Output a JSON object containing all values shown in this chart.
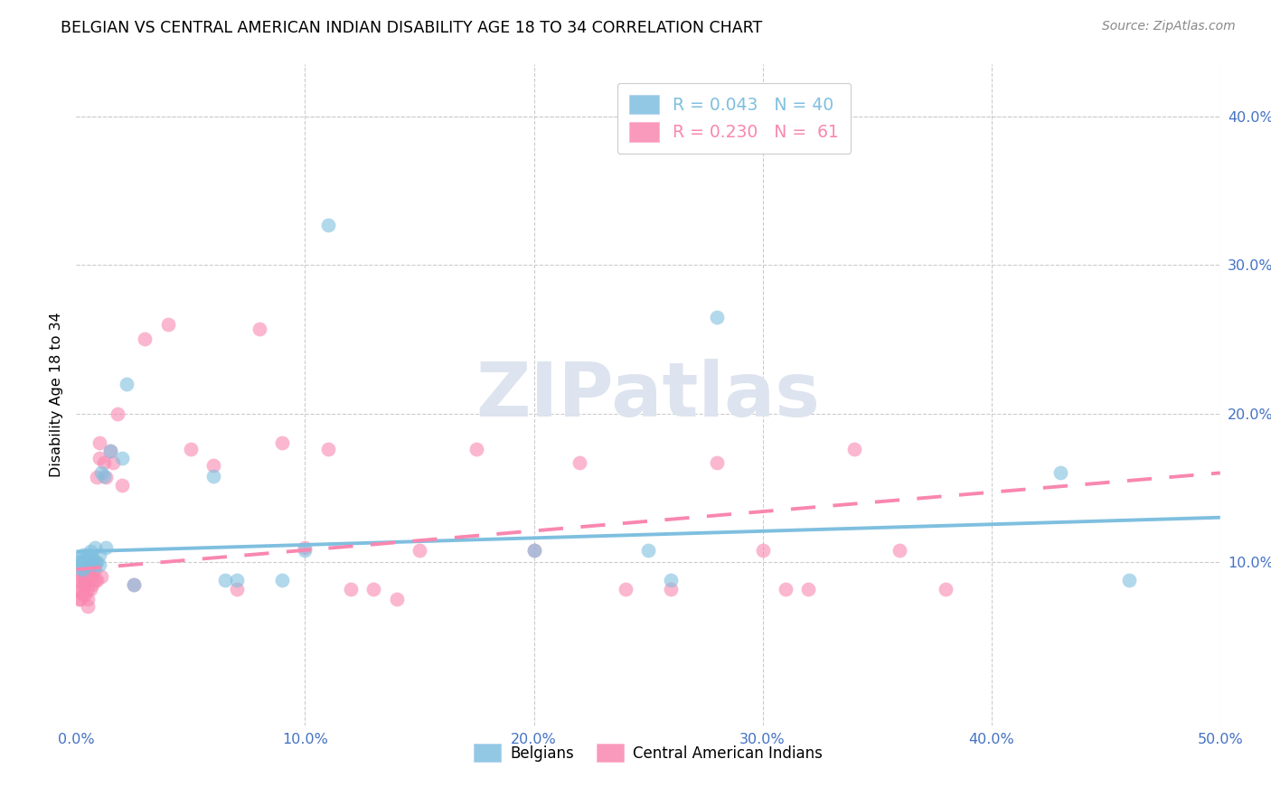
{
  "title": "BELGIAN VS CENTRAL AMERICAN INDIAN DISABILITY AGE 18 TO 34 CORRELATION CHART",
  "source": "Source: ZipAtlas.com",
  "ylabel": "Disability Age 18 to 34",
  "xlim": [
    0.0,
    0.5
  ],
  "ylim": [
    -0.01,
    0.435
  ],
  "xticks": [
    0.0,
    0.1,
    0.2,
    0.3,
    0.4,
    0.5
  ],
  "yticks": [
    0.1,
    0.2,
    0.3,
    0.4
  ],
  "xtick_labels": [
    "0.0%",
    "10.0%",
    "20.0%",
    "30.0%",
    "40.0%",
    "50.0%"
  ],
  "ytick_labels": [
    "10.0%",
    "20.0%",
    "30.0%",
    "40.0%"
  ],
  "belgian_R": 0.043,
  "belgian_N": 40,
  "central_R": 0.23,
  "central_N": 61,
  "belgian_color": "#7fbfdf",
  "central_color": "#f987b0",
  "background_color": "#ffffff",
  "grid_color": "#cccccc",
  "watermark_color": "#dde4ef",
  "belgian_x": [
    0.001,
    0.001,
    0.002,
    0.002,
    0.003,
    0.003,
    0.003,
    0.004,
    0.004,
    0.005,
    0.005,
    0.005,
    0.006,
    0.006,
    0.007,
    0.007,
    0.008,
    0.008,
    0.009,
    0.01,
    0.01,
    0.011,
    0.012,
    0.013,
    0.015,
    0.02,
    0.022,
    0.025,
    0.06,
    0.065,
    0.07,
    0.09,
    0.1,
    0.11,
    0.2,
    0.25,
    0.26,
    0.28,
    0.43,
    0.46
  ],
  "belgian_y": [
    0.1,
    0.098,
    0.096,
    0.103,
    0.095,
    0.1,
    0.105,
    0.098,
    0.102,
    0.1,
    0.105,
    0.098,
    0.1,
    0.107,
    0.1,
    0.103,
    0.11,
    0.098,
    0.1,
    0.098,
    0.105,
    0.16,
    0.158,
    0.11,
    0.175,
    0.17,
    0.22,
    0.085,
    0.158,
    0.088,
    0.088,
    0.088,
    0.108,
    0.327,
    0.108,
    0.108,
    0.088,
    0.265,
    0.16,
    0.088
  ],
  "central_x": [
    0.001,
    0.001,
    0.001,
    0.002,
    0.002,
    0.002,
    0.003,
    0.003,
    0.003,
    0.004,
    0.004,
    0.004,
    0.005,
    0.005,
    0.005,
    0.006,
    0.006,
    0.006,
    0.007,
    0.007,
    0.007,
    0.008,
    0.008,
    0.008,
    0.009,
    0.009,
    0.01,
    0.01,
    0.011,
    0.012,
    0.013,
    0.015,
    0.016,
    0.018,
    0.02,
    0.025,
    0.03,
    0.04,
    0.05,
    0.06,
    0.07,
    0.08,
    0.09,
    0.1,
    0.11,
    0.12,
    0.13,
    0.14,
    0.15,
    0.175,
    0.2,
    0.22,
    0.24,
    0.26,
    0.28,
    0.3,
    0.31,
    0.32,
    0.34,
    0.36,
    0.38
  ],
  "central_y": [
    0.088,
    0.082,
    0.075,
    0.08,
    0.09,
    0.075,
    0.085,
    0.078,
    0.09,
    0.078,
    0.085,
    0.09,
    0.075,
    0.082,
    0.07,
    0.082,
    0.09,
    0.095,
    0.085,
    0.092,
    0.098,
    0.088,
    0.095,
    0.1,
    0.088,
    0.157,
    0.18,
    0.17,
    0.09,
    0.167,
    0.157,
    0.175,
    0.167,
    0.2,
    0.152,
    0.085,
    0.25,
    0.26,
    0.176,
    0.165,
    0.082,
    0.257,
    0.18,
    0.11,
    0.176,
    0.082,
    0.082,
    0.075,
    0.108,
    0.176,
    0.108,
    0.167,
    0.082,
    0.082,
    0.167,
    0.108,
    0.082,
    0.082,
    0.176,
    0.108,
    0.082
  ],
  "belgian_line_x": [
    0.0,
    0.5
  ],
  "belgian_line_y": [
    0.107,
    0.13
  ],
  "central_line_x": [
    0.0,
    0.5
  ],
  "central_line_y": [
    0.095,
    0.16
  ]
}
